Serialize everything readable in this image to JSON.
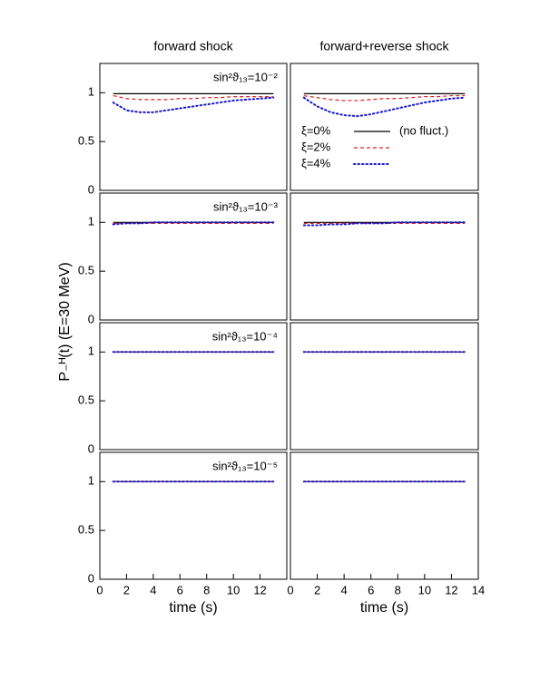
{
  "figure": {
    "ylabel": "P₋ᴴ(t)   (E=30 MeV)"
  },
  "chart_data": [
    {
      "type": "line",
      "title": "forward shock",
      "annotation": "sin²ϑ₁₃=10⁻²",
      "xlim": [
        0,
        14
      ],
      "ylim": [
        0,
        1.3
      ],
      "yticks": [
        0,
        0.5,
        1
      ],
      "x": [
        1,
        2,
        3,
        4,
        5,
        6,
        7,
        8,
        9,
        10,
        11,
        12,
        13
      ],
      "series": [
        {
          "name": "ξ=0%",
          "color": "#000000",
          "style": "solid",
          "values": [
            0.99,
            0.99,
            0.99,
            0.99,
            0.99,
            0.99,
            0.99,
            0.99,
            0.99,
            0.99,
            0.99,
            0.99,
            0.99
          ]
        },
        {
          "name": "ξ=2%",
          "color": "#e02020",
          "style": "dashed",
          "values": [
            0.97,
            0.94,
            0.93,
            0.93,
            0.93,
            0.94,
            0.94,
            0.95,
            0.95,
            0.96,
            0.96,
            0.96,
            0.96
          ]
        },
        {
          "name": "ξ=4%",
          "color": "#1a1acc",
          "style": "dotted",
          "values": [
            0.9,
            0.82,
            0.8,
            0.8,
            0.82,
            0.84,
            0.86,
            0.88,
            0.9,
            0.92,
            0.93,
            0.94,
            0.95
          ]
        }
      ]
    },
    {
      "type": "line",
      "title": "forward+reverse shock",
      "xlim": [
        0,
        14
      ],
      "ylim": [
        0,
        1.3
      ],
      "legend": true,
      "legend_note": "(no fluct.)",
      "x": [
        1,
        2,
        3,
        4,
        5,
        6,
        7,
        8,
        9,
        10,
        11,
        12,
        13
      ],
      "series": [
        {
          "name": "ξ=0%",
          "color": "#000000",
          "style": "solid",
          "values": [
            0.99,
            0.99,
            0.99,
            0.99,
            0.99,
            0.99,
            0.99,
            0.99,
            0.99,
            0.99,
            0.99,
            0.99,
            0.99
          ]
        },
        {
          "name": "ξ=2%",
          "color": "#e02020",
          "style": "dashed",
          "values": [
            0.97,
            0.95,
            0.93,
            0.92,
            0.92,
            0.93,
            0.94,
            0.94,
            0.95,
            0.96,
            0.96,
            0.97,
            0.97
          ]
        },
        {
          "name": "ξ=4%",
          "color": "#1a1acc",
          "style": "dotted",
          "values": [
            0.95,
            0.86,
            0.8,
            0.77,
            0.76,
            0.78,
            0.81,
            0.84,
            0.87,
            0.9,
            0.92,
            0.94,
            0.95
          ]
        }
      ]
    },
    {
      "type": "line",
      "annotation": "sin²ϑ₁₃=10⁻³",
      "xlim": [
        0,
        14
      ],
      "ylim": [
        0,
        1.3
      ],
      "yticks": [
        0,
        0.5,
        1
      ],
      "x": [
        1,
        2,
        3,
        4,
        5,
        6,
        7,
        8,
        9,
        10,
        11,
        12,
        13
      ],
      "series": [
        {
          "name": "ξ=0%",
          "color": "#000000",
          "style": "solid",
          "values": [
            1,
            1,
            1,
            1,
            1,
            1,
            1,
            1,
            1,
            1,
            1,
            1,
            1
          ]
        },
        {
          "name": "ξ=2%",
          "color": "#e02020",
          "style": "dashed",
          "values": [
            0.99,
            0.99,
            0.99,
            0.99,
            0.99,
            0.99,
            0.99,
            0.99,
            0.99,
            0.99,
            0.99,
            0.99,
            0.99
          ]
        },
        {
          "name": "ξ=4%",
          "color": "#1a1acc",
          "style": "dotted",
          "values": [
            0.98,
            0.99,
            0.99,
            1,
            1,
            1,
            1,
            1,
            1,
            1,
            1,
            1,
            1
          ]
        }
      ]
    },
    {
      "type": "line",
      "xlim": [
        0,
        14
      ],
      "ylim": [
        0,
        1.3
      ],
      "x": [
        1,
        2,
        3,
        4,
        5,
        6,
        7,
        8,
        9,
        10,
        11,
        12,
        13
      ],
      "series": [
        {
          "name": "ξ=0%",
          "color": "#000000",
          "style": "solid",
          "values": [
            1,
            1,
            1,
            1,
            1,
            1,
            1,
            1,
            1,
            1,
            1,
            1,
            1
          ]
        },
        {
          "name": "ξ=2%",
          "color": "#e02020",
          "style": "dashed",
          "values": [
            0.99,
            0.99,
            0.99,
            0.99,
            0.99,
            0.99,
            0.99,
            0.99,
            0.99,
            0.99,
            0.99,
            0.99,
            0.99
          ]
        },
        {
          "name": "ξ=4%",
          "color": "#1a1acc",
          "style": "dotted",
          "values": [
            0.97,
            0.97,
            0.98,
            0.98,
            0.99,
            0.99,
            0.99,
            1,
            1,
            1,
            1,
            1,
            1
          ]
        }
      ]
    },
    {
      "type": "line",
      "annotation": "sin²ϑ₁₃=10⁻⁴",
      "xlim": [
        0,
        14
      ],
      "ylim": [
        0,
        1.3
      ],
      "yticks": [
        0,
        0.5,
        1
      ],
      "x": [
        1,
        2,
        3,
        4,
        5,
        6,
        7,
        8,
        9,
        10,
        11,
        12,
        13
      ],
      "series": [
        {
          "name": "ξ=0%",
          "color": "#000000",
          "style": "solid",
          "values": [
            1,
            1,
            1,
            1,
            1,
            1,
            1,
            1,
            1,
            1,
            1,
            1,
            1
          ]
        },
        {
          "name": "ξ=2%",
          "color": "#e02020",
          "style": "dashed",
          "values": [
            1,
            1,
            1,
            1,
            1,
            1,
            1,
            1,
            1,
            1,
            1,
            1,
            1
          ]
        },
        {
          "name": "ξ=4%",
          "color": "#1a1acc",
          "style": "dotted",
          "values": [
            1,
            1,
            1,
            1,
            1,
            1,
            1,
            1,
            1,
            1,
            1,
            1,
            1
          ]
        }
      ]
    },
    {
      "type": "line",
      "xlim": [
        0,
        14
      ],
      "ylim": [
        0,
        1.3
      ],
      "x": [
        1,
        2,
        3,
        4,
        5,
        6,
        7,
        8,
        9,
        10,
        11,
        12,
        13
      ],
      "series": [
        {
          "name": "ξ=0%",
          "color": "#000000",
          "style": "solid",
          "values": [
            1,
            1,
            1,
            1,
            1,
            1,
            1,
            1,
            1,
            1,
            1,
            1,
            1
          ]
        },
        {
          "name": "ξ=2%",
          "color": "#e02020",
          "style": "dashed",
          "values": [
            1,
            1,
            1,
            1,
            1,
            1,
            1,
            1,
            1,
            1,
            1,
            1,
            1
          ]
        },
        {
          "name": "ξ=4%",
          "color": "#1a1acc",
          "style": "dotted",
          "values": [
            1,
            1,
            1,
            1,
            1,
            1,
            1,
            1,
            1,
            1,
            1,
            1,
            1
          ]
        }
      ]
    },
    {
      "type": "line",
      "annotation": "sin²ϑ₁₃=10⁻⁵",
      "xlabel": "time (s)",
      "xlim": [
        0,
        14
      ],
      "ylim": [
        0,
        1.3
      ],
      "yticks": [
        0,
        0.5,
        1
      ],
      "xticks": [
        0,
        2,
        4,
        6,
        8,
        10,
        12
      ],
      "x": [
        1,
        2,
        3,
        4,
        5,
        6,
        7,
        8,
        9,
        10,
        11,
        12,
        13
      ],
      "series": [
        {
          "name": "ξ=0%",
          "color": "#000000",
          "style": "solid",
          "values": [
            1,
            1,
            1,
            1,
            1,
            1,
            1,
            1,
            1,
            1,
            1,
            1,
            1
          ]
        },
        {
          "name": "ξ=2%",
          "color": "#e02020",
          "style": "dashed",
          "values": [
            1,
            1,
            1,
            1,
            1,
            1,
            1,
            1,
            1,
            1,
            1,
            1,
            1
          ]
        },
        {
          "name": "ξ=4%",
          "color": "#1a1acc",
          "style": "dotted",
          "values": [
            1,
            1,
            1,
            1,
            1,
            1,
            1,
            1,
            1,
            1,
            1,
            1,
            1
          ]
        }
      ]
    },
    {
      "type": "line",
      "xlabel": "time (s)",
      "xlim": [
        0,
        14
      ],
      "ylim": [
        0,
        1.3
      ],
      "xticks": [
        0,
        2,
        4,
        6,
        8,
        10,
        12,
        14
      ],
      "x": [
        1,
        2,
        3,
        4,
        5,
        6,
        7,
        8,
        9,
        10,
        11,
        12,
        13
      ],
      "series": [
        {
          "name": "ξ=0%",
          "color": "#000000",
          "style": "solid",
          "values": [
            1,
            1,
            1,
            1,
            1,
            1,
            1,
            1,
            1,
            1,
            1,
            1,
            1
          ]
        },
        {
          "name": "ξ=2%",
          "color": "#e02020",
          "style": "dashed",
          "values": [
            1,
            1,
            1,
            1,
            1,
            1,
            1,
            1,
            1,
            1,
            1,
            1,
            1
          ]
        },
        {
          "name": "ξ=4%",
          "color": "#1a1acc",
          "style": "dotted",
          "values": [
            1,
            1,
            1,
            1,
            1,
            1,
            1,
            1,
            1,
            1,
            1,
            1,
            1
          ]
        }
      ]
    }
  ]
}
